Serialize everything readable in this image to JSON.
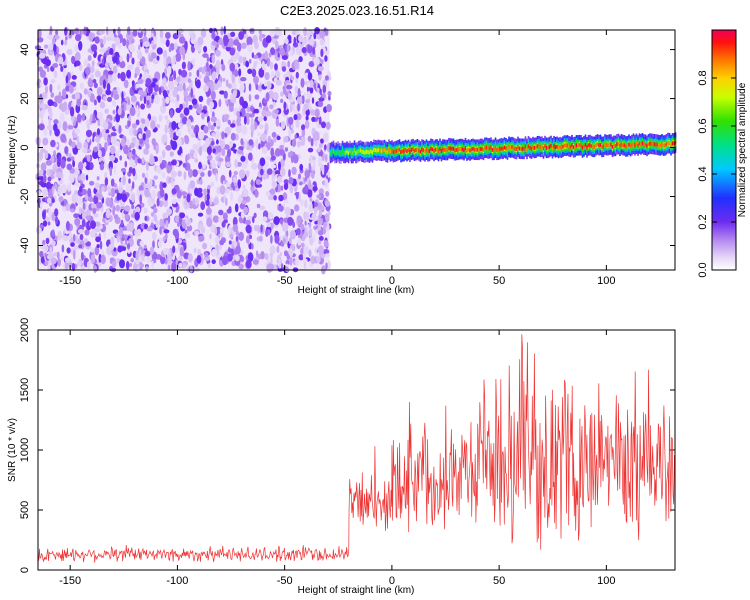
{
  "title": "C2E3.2025.023.16.51.R14",
  "chart_data": [
    {
      "type": "heatmap",
      "xlabel": "Height of straight line (km)",
      "ylabel": "Frequency (Hz)",
      "xlim": [
        -165,
        132
      ],
      "ylim": [
        -50,
        48
      ],
      "xticks": [
        -150,
        -100,
        -50,
        0,
        50,
        100
      ],
      "yticks": [
        -40,
        -20,
        0,
        20,
        40
      ],
      "colorbar": {
        "label": "Normalized spectral amplitude",
        "range": [
          0,
          1
        ],
        "ticks": [
          "0.0",
          "0.2",
          "0.4",
          "0.6",
          "0.8"
        ],
        "tick_values": [
          0.0,
          0.2,
          0.4,
          0.6,
          0.8
        ]
      },
      "regions": [
        {
          "description": "broadband noise",
          "x_range": [
            -165,
            -29
          ],
          "freq_range": [
            -50,
            48
          ],
          "amplitude": 0.15
        },
        {
          "description": "signal line",
          "x_range": [
            -29,
            132
          ],
          "freq_center": [
            -2,
            1.5
          ],
          "freq_halfwidth": 4,
          "amplitude_peak": 0.9
        }
      ]
    },
    {
      "type": "line",
      "xlabel": "Height of straight line (km)",
      "ylabel": "SNR (10 * v/v)",
      "xlim": [
        -165,
        132
      ],
      "ylim": [
        0,
        2000
      ],
      "xticks": [
        -150,
        -100,
        -50,
        0,
        50,
        100
      ],
      "yticks": [
        0,
        500,
        1000,
        1500,
        2000
      ],
      "color": "#ee3333",
      "segments": [
        {
          "x_range": [
            -165,
            -20
          ],
          "mean": 130,
          "spread": 60
        },
        {
          "x_range": [
            -20,
            0
          ],
          "mean": 550,
          "spread": 250
        },
        {
          "x_range": [
            0,
            40
          ],
          "mean": 800,
          "spread": 450
        },
        {
          "x_range": [
            40,
            132
          ],
          "mean": 900,
          "spread": 650
        }
      ]
    }
  ]
}
